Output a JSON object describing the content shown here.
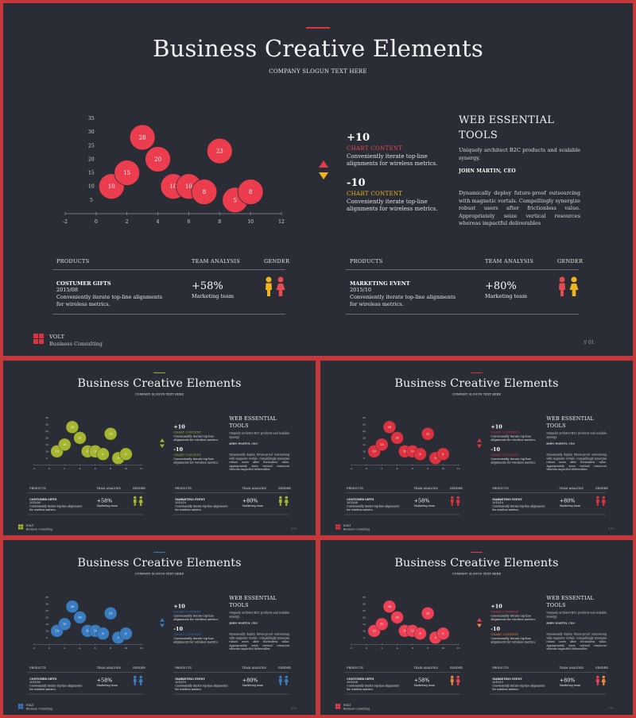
{
  "title": "Business Creative Elements",
  "subtitle": "COMPANY SLOGUN TEXT HERE",
  "annotations": [
    {
      "value": "+10",
      "label": "CHART CONTENT",
      "desc": "Conveniently iterate top-line alignments for wireless metrics."
    },
    {
      "value": "-10",
      "label": "CHART CONTENT",
      "desc": "Conveniently iterate top-line alignments for wireless metrics."
    }
  ],
  "web": {
    "title": "WEB ESSENTIAL TOOLS",
    "p1": "Uniquely architect B2C products and scalable synergy.",
    "author": "JOHN MARTIN, CEO",
    "p2": "Dynamically deploy future-proof outsourcing with magnetic vortals. Compellingly synergize robust users after frictionless value. Appropriately seize vertical resources whereas impactful deliverables"
  },
  "tables": [
    {
      "col1": "PRODUCTS",
      "col2": "TEAM ANALYSIS",
      "col3": "GENDER",
      "row_title": "COSTUMER GIFTS",
      "row_date": "2015/08",
      "row_desc": "Conveniently iterate top-line alignments for wireless metrics.",
      "pct": "+58%",
      "pct_label": "Marketing team"
    },
    {
      "col1": "PRODUCTS",
      "col2": "TEAM ANALYSIS",
      "col3": "GENDER",
      "row_title": "MARKETING EVENT",
      "row_date": "2015/10",
      "row_desc": "Conveniently iterate top-line alignments for wireless metrics.",
      "pct": "+80%",
      "pct_label": "Marketing team"
    }
  ],
  "brand": {
    "name": "VOLT",
    "sub": "Business Consulting",
    "page": "// 01"
  },
  "colors": {
    "background": "#2a2d35",
    "frame": "#c4383b",
    "label_red": "#e64a52",
    "label_gold": "#f0b41e",
    "up_arrow": "#e23c4a",
    "down_arrow": "#f0b41e"
  },
  "themes": [
    {
      "name": "red",
      "bubble": "#ec3d4f",
      "accent": "#d9343f",
      "logo": "#d9343f",
      "up": "#e23c4a",
      "down": "#f0b41e",
      "g_left": "#f0b41e",
      "g_right": "#e64a52",
      "g2_left": "#e64a52",
      "g2_right": "#f0b41e",
      "label1": "#e64a52",
      "label2": "#f0b41e"
    },
    {
      "name": "olive",
      "bubble": "#a6b52f",
      "accent": "#a6b52f",
      "logo": "#a6b52f",
      "up": "#a6b52f",
      "down": "#a6b52f",
      "g_left": "#a6b52f",
      "g_right": "#a6b52f",
      "g2_left": "#a6b52f",
      "g2_right": "#a6b52f",
      "label1": "#a6b52f",
      "label2": "#a6b52f"
    },
    {
      "name": "crimson",
      "bubble": "#dd3340",
      "accent": "#dd3340",
      "logo": "#dd3340",
      "up": "#dd3340",
      "down": "#dd3340",
      "g_left": "#dd3340",
      "g_right": "#dd3340",
      "g2_left": "#dd3340",
      "g2_right": "#dd3340",
      "label1": "#dd3340",
      "label2": "#dd3340"
    },
    {
      "name": "blue",
      "bubble": "#3a7cc0",
      "accent": "#3a7cc0",
      "logo": "#3a7cc0",
      "up": "#3a7cc0",
      "down": "#3a7cc0",
      "g_left": "#3a7cc0",
      "g_right": "#3a7cc0",
      "g2_left": "#3a7cc0",
      "g2_right": "#3a7cc0",
      "label1": "#3a7cc0",
      "label2": "#3a7cc0"
    },
    {
      "name": "pink-orange",
      "bubble": "#ee4156",
      "accent": "#ee4156",
      "logo": "#ee4156",
      "up": "#ee4156",
      "down": "#f08a3a",
      "g_left": "#f08a3a",
      "g_right": "#ee4156",
      "g2_left": "#ee4156",
      "g2_right": "#f08a3a",
      "label1": "#ee4156",
      "label2": "#f08a3a"
    }
  ],
  "chart_data": {
    "type": "scatter",
    "x_ticks": [
      -2,
      0,
      2,
      4,
      6,
      8,
      10,
      12
    ],
    "y_ticks": [
      5,
      10,
      15,
      20,
      25,
      30,
      35
    ],
    "xlim": [
      -2,
      12
    ],
    "ylim": [
      0,
      35
    ],
    "grid": false,
    "points": [
      {
        "x": 1,
        "y": 10,
        "label": "10"
      },
      {
        "x": 2,
        "y": 15,
        "label": "15"
      },
      {
        "x": 3,
        "y": 28,
        "label": "28"
      },
      {
        "x": 4,
        "y": 20,
        "label": "20"
      },
      {
        "x": 5,
        "y": 10,
        "label": "10"
      },
      {
        "x": 6,
        "y": 10,
        "label": "10"
      },
      {
        "x": 7,
        "y": 8,
        "label": "8"
      },
      {
        "x": 8,
        "y": 23,
        "label": "23"
      },
      {
        "x": 9,
        "y": 5,
        "label": "5"
      },
      {
        "x": 10,
        "y": 8,
        "label": "8"
      }
    ]
  }
}
